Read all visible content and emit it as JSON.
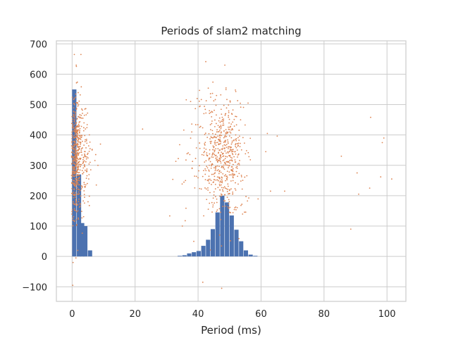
{
  "chart_data": {
    "type": "bar",
    "title": "Periods of slam2 matching",
    "xlabel": "Period (ms)",
    "ylabel": "",
    "xlim": [
      -5,
      106
    ],
    "ylim": [
      -148,
      710
    ],
    "x_ticks": [
      0,
      20,
      40,
      60,
      80,
      100
    ],
    "x_tick_labels": [
      "0",
      "20",
      "40",
      "60",
      "80",
      "100"
    ],
    "y_ticks": [
      -100,
      0,
      100,
      200,
      300,
      400,
      500,
      600,
      700
    ],
    "y_tick_labels": [
      "−100",
      "0",
      "100",
      "200",
      "300",
      "400",
      "500",
      "600",
      "700"
    ],
    "grid": true,
    "colors": {
      "histogram": "#4c72b0",
      "scatter": "#dd8452",
      "grid": "#cccccc",
      "spine": "#cccccc",
      "text": "#262626"
    },
    "series": [
      {
        "kind": "histogram",
        "bar_width": 1.5,
        "bins": [
          {
            "x": 0.75,
            "count": 550
          },
          {
            "x": 2.25,
            "count": 270
          },
          {
            "x": 3.25,
            "count": 110
          },
          {
            "x": 4.25,
            "count": 100
          },
          {
            "x": 5.75,
            "count": 20
          },
          {
            "x": 34.25,
            "count": 2
          },
          {
            "x": 35.75,
            "count": 4
          },
          {
            "x": 37.25,
            "count": 10
          },
          {
            "x": 38.75,
            "count": 14
          },
          {
            "x": 40.25,
            "count": 18
          },
          {
            "x": 41.75,
            "count": 35
          },
          {
            "x": 43.25,
            "count": 55
          },
          {
            "x": 44.75,
            "count": 90
          },
          {
            "x": 46.25,
            "count": 145
          },
          {
            "x": 47.75,
            "count": 200
          },
          {
            "x": 49.25,
            "count": 178
          },
          {
            "x": 50.75,
            "count": 135
          },
          {
            "x": 52.25,
            "count": 88
          },
          {
            "x": 53.75,
            "count": 50
          },
          {
            "x": 55.25,
            "count": 20
          },
          {
            "x": 56.75,
            "count": 6
          },
          {
            "x": 58.25,
            "count": 2
          }
        ]
      },
      {
        "kind": "scatter",
        "clusters": [
          {
            "x_mean": 1.2,
            "x_sd": 0.9,
            "y_mean": 320,
            "y_sd": 95,
            "n": 420
          },
          {
            "x_mean": 3.5,
            "x_sd": 1.5,
            "y_mean": 330,
            "y_sd": 85,
            "n": 130
          },
          {
            "x_mean": 48.0,
            "x_sd": 3.6,
            "y_mean": 325,
            "y_sd": 90,
            "n": 520
          },
          {
            "x_mean": 44.0,
            "x_sd": 6.5,
            "y_mean": 310,
            "y_sd": 120,
            "n": 90
          }
        ],
        "points": [
          [
            0.2,
            -95
          ],
          [
            0.3,
            -20
          ],
          [
            1.2,
            -5
          ],
          [
            1.8,
            20
          ],
          [
            0.7,
            665
          ],
          [
            1.3,
            630
          ],
          [
            2.8,
            665
          ],
          [
            9.0,
            370
          ],
          [
            8.2,
            300
          ],
          [
            38.0,
            410
          ],
          [
            36.0,
            250
          ],
          [
            35.0,
            100
          ],
          [
            41.5,
            -85
          ],
          [
            48.5,
            630
          ],
          [
            47.5,
            -105
          ],
          [
            62.0,
            405
          ],
          [
            63.0,
            215
          ],
          [
            67.5,
            215
          ],
          [
            61.5,
            345
          ],
          [
            85.5,
            330
          ],
          [
            88.5,
            90
          ],
          [
            91.0,
            205
          ],
          [
            90.5,
            275
          ],
          [
            94.5,
            225
          ],
          [
            94.8,
            458
          ],
          [
            98.0,
            262
          ],
          [
            98.5,
            375
          ],
          [
            99.0,
            390
          ],
          [
            101.5,
            255
          ]
        ]
      }
    ]
  }
}
